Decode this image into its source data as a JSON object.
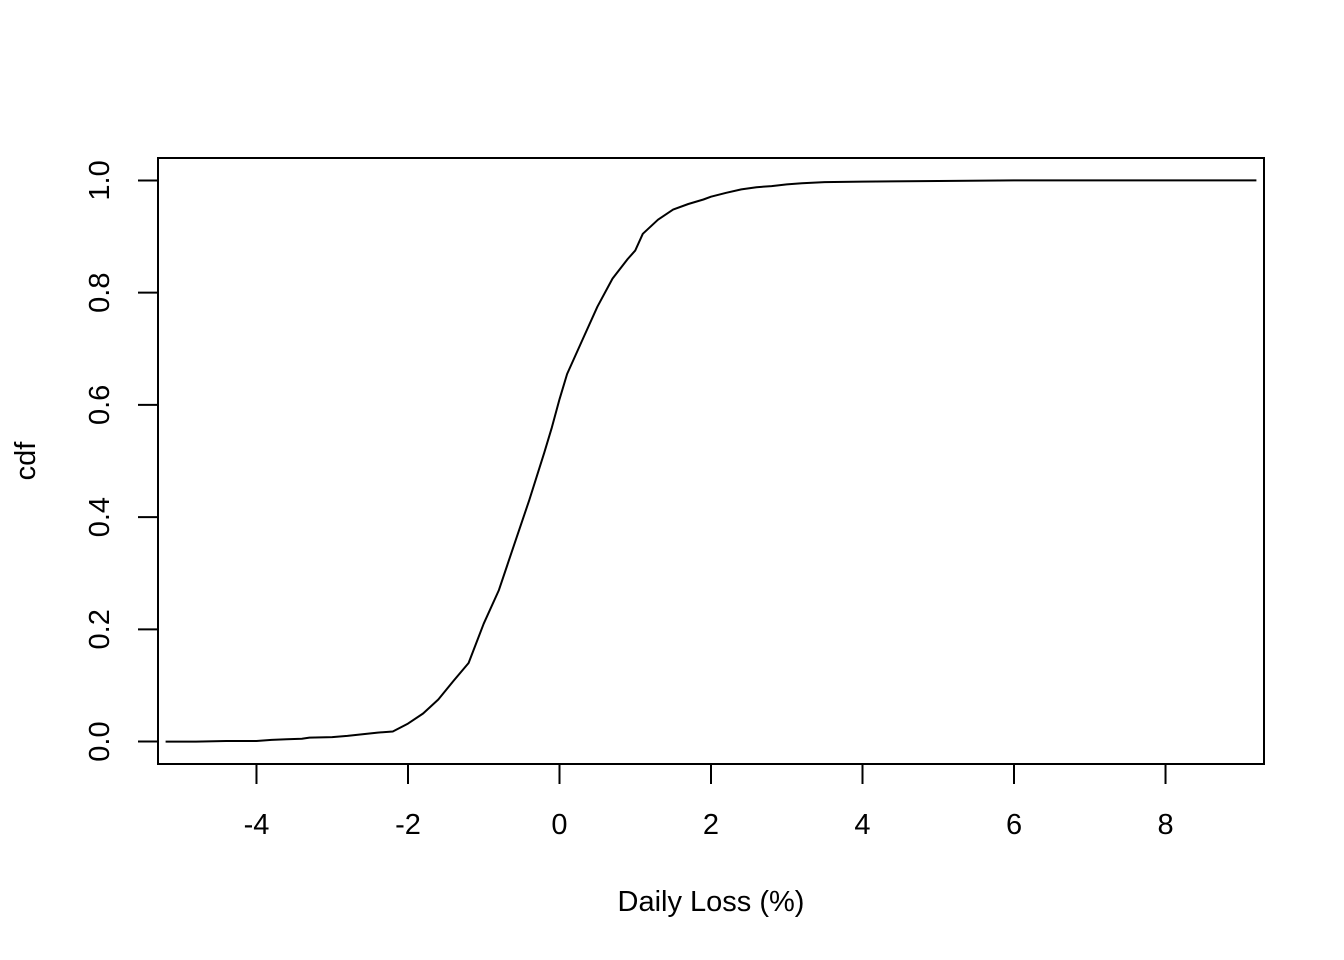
{
  "chart_data": {
    "type": "line",
    "title": "",
    "xlabel": "Daily Loss (%)",
    "ylabel": "cdf",
    "xlim": [
      -5.3,
      9.3
    ],
    "ylim": [
      -0.04,
      1.04
    ],
    "x_ticks": [
      -4,
      -2,
      0,
      2,
      4,
      6,
      8
    ],
    "x_tick_labels": [
      "-4",
      "-2",
      "0",
      "2",
      "4",
      "6",
      "8"
    ],
    "y_ticks": [
      0.0,
      0.2,
      0.4,
      0.6,
      0.8,
      1.0
    ],
    "y_tick_labels": [
      "0.0",
      "0.2",
      "0.4",
      "0.6",
      "0.8",
      "1.0"
    ],
    "grid": false,
    "legend": "none",
    "line_color": "#000000",
    "series": [
      {
        "x": [
          -5.2,
          -4.8,
          -4.4,
          -4.0,
          -3.8,
          -3.6,
          -3.4,
          -3.3,
          -3.0,
          -2.8,
          -2.6,
          -2.4,
          -2.2,
          -2.0,
          -1.8,
          -1.6,
          -1.4,
          -1.2,
          -1.0,
          -0.8,
          -0.6,
          -0.4,
          -0.2,
          -0.1,
          0.0,
          0.1,
          0.3,
          0.5,
          0.7,
          0.9,
          1.0,
          1.1,
          1.3,
          1.5,
          1.7,
          1.9,
          2.0,
          2.2,
          2.4,
          2.6,
          2.8,
          3.0,
          3.2,
          3.5,
          4.0,
          5.0,
          6.0,
          7.0,
          8.0,
          9.2
        ],
        "y": [
          0.0,
          0.0,
          0.001,
          0.001,
          0.003,
          0.004,
          0.005,
          0.007,
          0.008,
          0.01,
          0.013,
          0.016,
          0.018,
          0.032,
          0.05,
          0.075,
          0.108,
          0.14,
          0.21,
          0.27,
          0.35,
          0.43,
          0.515,
          0.56,
          0.61,
          0.655,
          0.715,
          0.775,
          0.825,
          0.86,
          0.875,
          0.905,
          0.93,
          0.948,
          0.958,
          0.966,
          0.971,
          0.978,
          0.984,
          0.988,
          0.99,
          0.993,
          0.995,
          0.997,
          0.998,
          0.999,
          1.0,
          1.0,
          1.0,
          1.0
        ]
      }
    ]
  }
}
